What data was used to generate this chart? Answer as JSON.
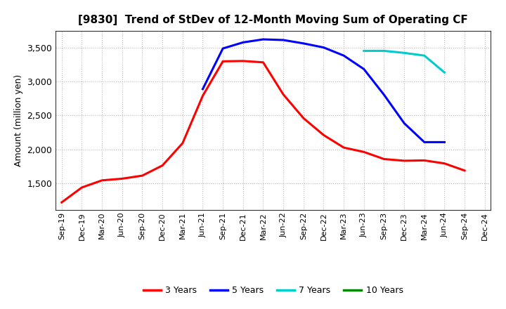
{
  "title": "[9830]  Trend of StDev of 12-Month Moving Sum of Operating CF",
  "ylabel": "Amount (million yen)",
  "ylim": [
    1100,
    3750
  ],
  "yticks": [
    1500,
    2000,
    2500,
    3000,
    3500
  ],
  "background_color": "#ffffff",
  "grid_color": "#bbbbbb",
  "line_width": 2.2,
  "series": {
    "3 Years": {
      "color": "#ff0000",
      "x_indices": [
        0,
        1,
        2,
        3,
        4,
        5,
        6,
        7,
        8,
        9,
        10,
        11,
        12,
        13,
        14,
        15,
        16,
        17,
        18,
        19,
        20
      ],
      "values": [
        1215,
        1435,
        1540,
        1565,
        1610,
        1760,
        2090,
        2790,
        3300,
        3305,
        3285,
        2810,
        2460,
        2210,
        2025,
        1960,
        1855,
        1830,
        1835,
        1790,
        1685
      ]
    },
    "5 Years": {
      "color": "#0000ff",
      "x_indices": [
        7,
        8,
        9,
        10,
        11,
        12,
        13,
        14,
        15,
        16,
        17,
        18,
        19
      ],
      "values": [
        2890,
        3490,
        3580,
        3625,
        3615,
        3565,
        3505,
        3385,
        3185,
        2805,
        2385,
        2105,
        2105
      ]
    },
    "7 Years": {
      "color": "#00cccc",
      "x_indices": [
        15,
        16,
        17,
        18,
        19
      ],
      "values": [
        3455,
        3455,
        3425,
        3385,
        3135
      ]
    },
    "10 Years": {
      "color": "#008800",
      "x_indices": [],
      "values": []
    }
  },
  "x_tick_labels": [
    "Sep-19",
    "Dec-19",
    "Mar-20",
    "Jun-20",
    "Sep-20",
    "Dec-20",
    "Mar-21",
    "Jun-21",
    "Sep-21",
    "Dec-21",
    "Mar-22",
    "Jun-22",
    "Sep-22",
    "Dec-22",
    "Mar-23",
    "Jun-23",
    "Sep-23",
    "Dec-23",
    "Mar-24",
    "Jun-24",
    "Sep-24",
    "Dec-24"
  ],
  "legend_order": [
    "3 Years",
    "5 Years",
    "7 Years",
    "10 Years"
  ]
}
